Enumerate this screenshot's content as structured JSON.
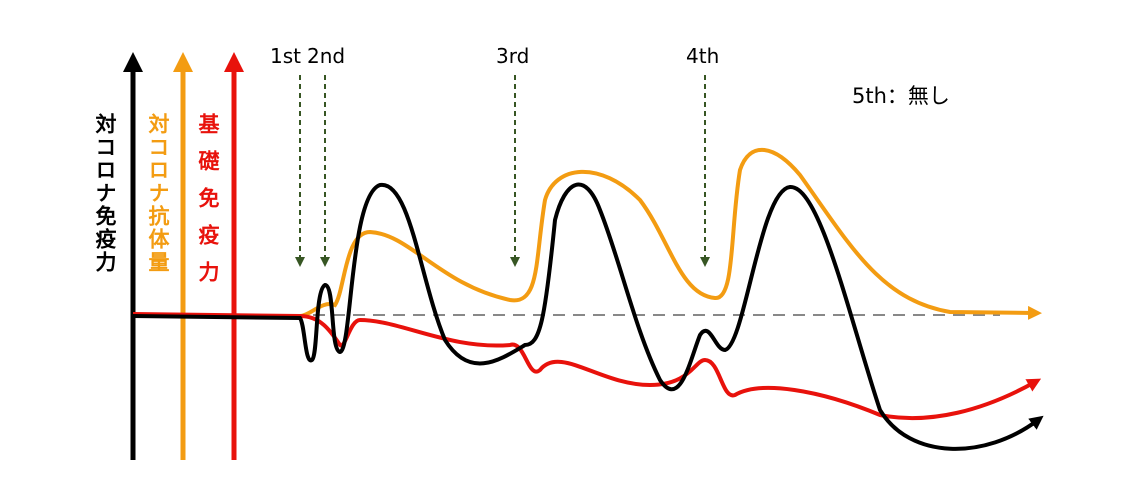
{
  "axes": [
    "対コロナ免疫力",
    "対コロナ抗体量",
    "基礎免疫力"
  ],
  "doses": [
    "1st",
    "2nd",
    "3rd",
    "4th"
  ],
  "note": "5th：無し"
}
